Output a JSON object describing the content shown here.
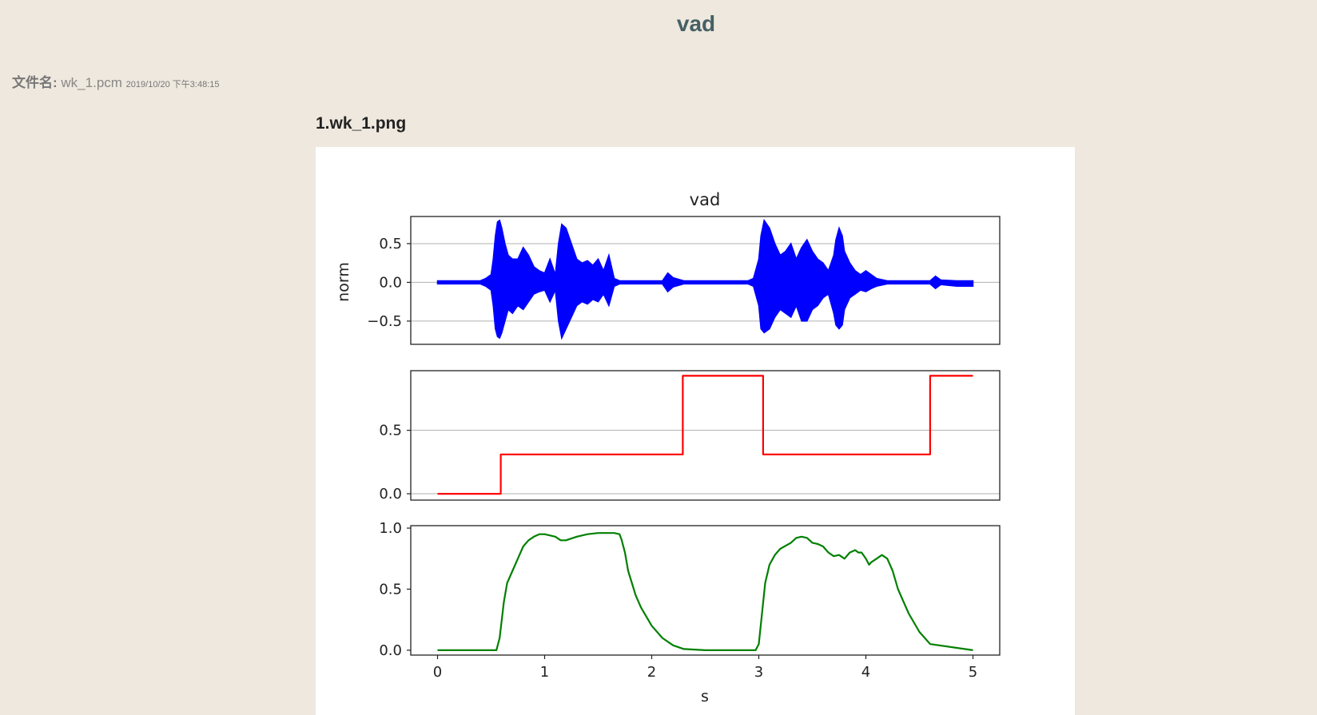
{
  "page": {
    "title": "vad"
  },
  "file_info": {
    "label": "文件名:",
    "filename": "wk_1.pcm",
    "timestamp": "2019/10/20 下午3:48:15"
  },
  "image": {
    "title": "1.wk_1.png"
  },
  "colors": {
    "background": "#eee8de",
    "title": "#456064",
    "waveform": "#0000ff",
    "vad": "#ff0000",
    "prob": "#008000"
  },
  "chart_data": [
    {
      "type": "line",
      "title": "vad",
      "xlabel": "",
      "ylabel": "norm",
      "xlim": [
        -0.25,
        5.25
      ],
      "ylim": [
        -0.8,
        0.85
      ],
      "yticks": [
        -0.5,
        0.0,
        0.5
      ],
      "ytick_labels": [
        "−0.5",
        "0.0",
        "0.5"
      ],
      "grid": "horizontal",
      "series": [
        {
          "color": "#0000ff",
          "envelope": {
            "x": [
              0.0,
              0.4,
              0.45,
              0.5,
              0.52,
              0.54,
              0.56,
              0.58,
              0.6,
              0.63,
              0.66,
              0.7,
              0.75,
              0.8,
              0.85,
              0.9,
              0.95,
              1.0,
              1.05,
              1.1,
              1.13,
              1.16,
              1.2,
              1.25,
              1.3,
              1.35,
              1.4,
              1.45,
              1.5,
              1.55,
              1.6,
              1.65,
              1.7,
              1.8,
              2.0,
              2.1,
              2.15,
              2.2,
              2.3,
              2.6,
              2.8,
              2.9,
              2.95,
              3.0,
              3.02,
              3.05,
              3.1,
              3.15,
              3.2,
              3.25,
              3.3,
              3.35,
              3.4,
              3.45,
              3.5,
              3.55,
              3.6,
              3.65,
              3.7,
              3.72,
              3.75,
              3.78,
              3.8,
              3.85,
              3.9,
              3.95,
              4.0,
              4.05,
              4.1,
              4.2,
              4.4,
              4.6,
              4.65,
              4.7,
              4.85,
              5.0
            ],
            "upper": [
              0.02,
              0.02,
              0.05,
              0.1,
              0.3,
              0.6,
              0.78,
              0.8,
              0.7,
              0.5,
              0.35,
              0.3,
              0.3,
              0.45,
              0.35,
              0.2,
              0.15,
              0.12,
              0.3,
              0.1,
              0.5,
              0.75,
              0.7,
              0.5,
              0.3,
              0.25,
              0.28,
              0.22,
              0.3,
              0.15,
              0.35,
              0.05,
              0.02,
              0.02,
              0.02,
              0.02,
              0.12,
              0.06,
              0.02,
              0.02,
              0.02,
              0.02,
              0.05,
              0.3,
              0.6,
              0.8,
              0.7,
              0.5,
              0.35,
              0.4,
              0.5,
              0.3,
              0.45,
              0.55,
              0.4,
              0.3,
              0.25,
              0.15,
              0.35,
              0.55,
              0.7,
              0.6,
              0.4,
              0.25,
              0.15,
              0.1,
              0.15,
              0.1,
              0.05,
              0.02,
              0.02,
              0.02,
              0.08,
              0.03,
              0.02,
              0.02
            ],
            "lower": [
              -0.02,
              -0.02,
              -0.05,
              -0.1,
              -0.3,
              -0.6,
              -0.7,
              -0.72,
              -0.65,
              -0.5,
              -0.35,
              -0.4,
              -0.3,
              -0.35,
              -0.25,
              -0.15,
              -0.12,
              -0.1,
              -0.25,
              -0.1,
              -0.5,
              -0.72,
              -0.6,
              -0.45,
              -0.3,
              -0.25,
              -0.28,
              -0.22,
              -0.25,
              -0.15,
              -0.3,
              -0.05,
              -0.02,
              -0.02,
              -0.02,
              -0.02,
              -0.12,
              -0.06,
              -0.02,
              -0.02,
              -0.02,
              -0.02,
              -0.05,
              -0.3,
              -0.6,
              -0.65,
              -0.6,
              -0.45,
              -0.35,
              -0.4,
              -0.45,
              -0.3,
              -0.5,
              -0.5,
              -0.35,
              -0.3,
              -0.2,
              -0.15,
              -0.4,
              -0.55,
              -0.6,
              -0.55,
              -0.35,
              -0.2,
              -0.15,
              -0.1,
              -0.12,
              -0.08,
              -0.05,
              -0.02,
              -0.02,
              -0.02,
              -0.08,
              -0.03,
              -0.05,
              -0.05
            ]
          }
        }
      ]
    },
    {
      "type": "line",
      "xlim": [
        -0.25,
        5.25
      ],
      "ylim": [
        -0.05,
        0.97
      ],
      "yticks": [
        0.0,
        0.5
      ],
      "ytick_labels": [
        "0.0",
        "0.5"
      ],
      "grid": "horizontal",
      "series": [
        {
          "color": "#ff0000",
          "step": true,
          "x": [
            0.0,
            0.59,
            0.59,
            2.29,
            2.29,
            3.04,
            3.04,
            4.6,
            4.6,
            5.0
          ],
          "y": [
            0.0,
            0.0,
            0.31,
            0.31,
            0.93,
            0.93,
            0.31,
            0.31,
            0.93,
            0.93
          ]
        }
      ]
    },
    {
      "type": "line",
      "xlabel": "s",
      "xlim": [
        -0.25,
        5.25
      ],
      "ylim": [
        -0.04,
        1.02
      ],
      "xticks": [
        0,
        1,
        2,
        3,
        4,
        5
      ],
      "xtick_labels": [
        "0",
        "1",
        "2",
        "3",
        "4",
        "5"
      ],
      "yticks": [
        0.0,
        0.5,
        1.0
      ],
      "ytick_labels": [
        "0.0",
        "0.5",
        "1.0"
      ],
      "grid": "none",
      "series": [
        {
          "color": "#008000",
          "x": [
            0.0,
            0.52,
            0.55,
            0.58,
            0.62,
            0.65,
            0.7,
            0.75,
            0.8,
            0.85,
            0.9,
            0.95,
            1.0,
            1.1,
            1.15,
            1.2,
            1.3,
            1.4,
            1.5,
            1.6,
            1.65,
            1.7,
            1.72,
            1.75,
            1.78,
            1.85,
            1.9,
            2.0,
            2.1,
            2.2,
            2.3,
            2.5,
            2.97,
            3.0,
            3.03,
            3.06,
            3.1,
            3.15,
            3.2,
            3.3,
            3.35,
            3.4,
            3.45,
            3.5,
            3.55,
            3.6,
            3.65,
            3.7,
            3.75,
            3.8,
            3.85,
            3.9,
            3.93,
            3.96,
            4.0,
            4.03,
            4.05,
            4.1,
            4.15,
            4.2,
            4.25,
            4.3,
            4.4,
            4.5,
            4.6,
            5.0
          ],
          "y": [
            0.0,
            0.0,
            0.0,
            0.1,
            0.4,
            0.55,
            0.65,
            0.75,
            0.85,
            0.9,
            0.93,
            0.95,
            0.95,
            0.93,
            0.9,
            0.9,
            0.93,
            0.95,
            0.96,
            0.96,
            0.96,
            0.95,
            0.9,
            0.8,
            0.65,
            0.45,
            0.35,
            0.2,
            0.1,
            0.04,
            0.01,
            0.0,
            0.0,
            0.05,
            0.3,
            0.55,
            0.7,
            0.78,
            0.83,
            0.88,
            0.92,
            0.93,
            0.92,
            0.88,
            0.87,
            0.85,
            0.8,
            0.77,
            0.78,
            0.75,
            0.8,
            0.82,
            0.8,
            0.8,
            0.75,
            0.7,
            0.72,
            0.75,
            0.78,
            0.75,
            0.65,
            0.5,
            0.3,
            0.15,
            0.05,
            0.0
          ]
        }
      ]
    }
  ]
}
